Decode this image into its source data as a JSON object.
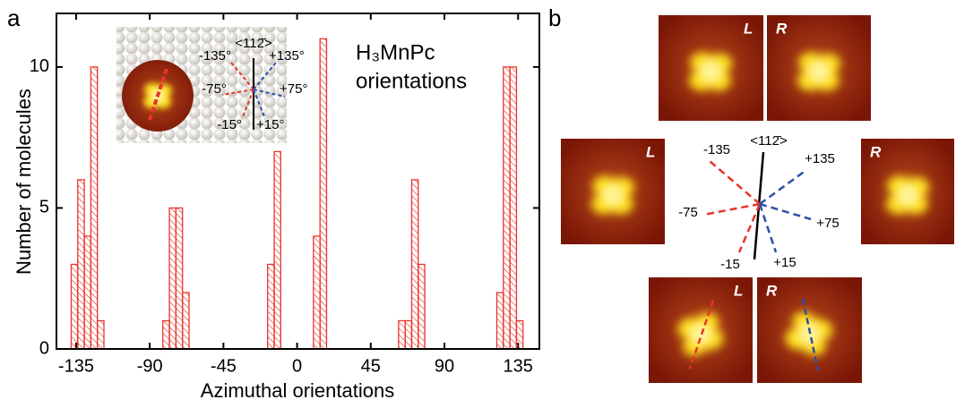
{
  "chart_data": {
    "type": "histogram",
    "panel_label": "a",
    "xlabel": "Azimuthal orientations",
    "ylabel": "Number of molecules",
    "annotation_line1": "H₃MnPc",
    "annotation_line2": "orientations",
    "inset_labels": {
      "direction": "<112̄>",
      "m135": "-135°",
      "p135": "+135°",
      "m75": "-75°",
      "p75": "+75°",
      "m15": "-15°",
      "p15": "+15°"
    },
    "color": "#e8342c",
    "bins": [
      -138,
      -134,
      -130,
      -126,
      -122,
      -118,
      -114,
      -110,
      -106,
      -102,
      -98,
      -94,
      -90,
      -86,
      -82,
      -78,
      -74,
      -70,
      -66,
      -62,
      -58,
      -54,
      -50,
      -46,
      -42,
      -38,
      -34,
      -30,
      -26,
      -22,
      -18,
      -14,
      -10,
      -6,
      -2,
      2,
      6,
      10,
      14,
      18,
      22,
      26,
      30,
      34,
      38,
      42,
      46,
      50,
      54,
      58,
      62,
      66,
      70,
      74,
      78,
      82,
      86,
      90,
      94,
      98,
      102,
      106,
      110,
      114,
      118,
      122,
      126,
      130,
      134,
      138
    ],
    "values": [
      3,
      6,
      4,
      10,
      1,
      0,
      0,
      0,
      0,
      0,
      0,
      0,
      0,
      0,
      1,
      5,
      5,
      2,
      0,
      0,
      0,
      0,
      0,
      0,
      0,
      0,
      0,
      0,
      0,
      0,
      3,
      7,
      0,
      0,
      0,
      0,
      0,
      4,
      11,
      0,
      0,
      0,
      0,
      0,
      0,
      0,
      0,
      0,
      0,
      0,
      1,
      1,
      6,
      3,
      0,
      0,
      0,
      0,
      0,
      0,
      0,
      0,
      0,
      0,
      0,
      2,
      10,
      10,
      1
    ],
    "xlim": [
      -147,
      148
    ],
    "xticks": [
      -135,
      -90,
      -45,
      0,
      45,
      90,
      135
    ],
    "ylim": [
      0,
      11.9
    ],
    "yticks": [
      0,
      5,
      10
    ]
  },
  "figure_b": {
    "panel_label": "b",
    "direction": "<112̄>",
    "angles": {
      "m135": "-135",
      "p135": "+135",
      "m75": "-75",
      "p75": "+75",
      "m15": "-15",
      "p15": "+15"
    },
    "image_labels": [
      "L",
      "R",
      "L",
      "R",
      "L",
      "R"
    ]
  }
}
